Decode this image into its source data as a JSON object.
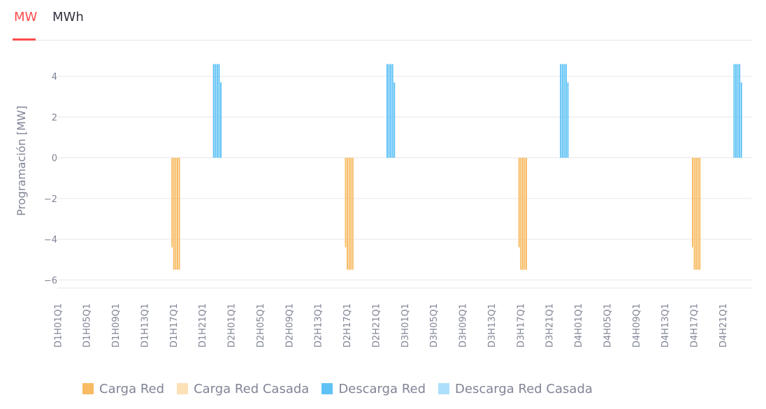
{
  "tabs": [
    {
      "label": "MW",
      "active": true
    },
    {
      "label": "MWh",
      "active": false
    }
  ],
  "colors": {
    "accent": "#ff4b4b",
    "carga_red": "#f8bb63",
    "carga_red_casada": "#fde0b6",
    "descarga_red": "#5ec2f5",
    "descarga_red_casada": "#ace0fa"
  },
  "chart_data": {
    "type": "bar",
    "ylabel": "Programación [MW]",
    "ylim": [
      -6.4,
      5.0
    ],
    "yticks": [
      4,
      2,
      0,
      -2,
      -4,
      -6
    ],
    "ytick_labels": [
      "4",
      "2",
      "0",
      "−2",
      "−4",
      "−6"
    ],
    "grid": true,
    "legend_position": "bottom-left",
    "x_tick_labels": [
      "D1H01Q1",
      "D1H05Q1",
      "D1H09Q1",
      "D1H13Q1",
      "D1H17Q1",
      "D1H21Q1",
      "D2H01Q1",
      "D2H05Q1",
      "D2H09Q1",
      "D2H13Q1",
      "D2H17Q1",
      "D2H21Q1",
      "D3H01Q1",
      "D3H05Q1",
      "D3H09Q1",
      "D3H13Q1",
      "D3H17Q1",
      "D3H21Q1",
      "D4H01Q1",
      "D4H05Q1",
      "D4H09Q1",
      "D4H13Q1",
      "D4H17Q1",
      "D4H21Q1"
    ],
    "series": [
      {
        "name": "Carga Red",
        "color": "#f8bb63",
        "points": [
          {
            "x": "D1H16Q4",
            "y": -4.4
          },
          {
            "x": "D1H17Q1",
            "y": -5.5
          },
          {
            "x": "D1H17Q2",
            "y": -5.5
          },
          {
            "x": "D1H17Q3",
            "y": -5.5
          },
          {
            "x": "D1H17Q4",
            "y": -5.5
          },
          {
            "x": "D2H16Q4",
            "y": -4.4
          },
          {
            "x": "D2H17Q1",
            "y": -5.5
          },
          {
            "x": "D2H17Q2",
            "y": -5.5
          },
          {
            "x": "D2H17Q3",
            "y": -5.5
          },
          {
            "x": "D2H17Q4",
            "y": -5.5
          },
          {
            "x": "D3H16Q4",
            "y": -4.4
          },
          {
            "x": "D3H17Q1",
            "y": -5.5
          },
          {
            "x": "D3H17Q2",
            "y": -5.5
          },
          {
            "x": "D3H17Q3",
            "y": -5.5
          },
          {
            "x": "D3H17Q4",
            "y": -5.5
          },
          {
            "x": "D4H16Q4",
            "y": -4.4
          },
          {
            "x": "D4H17Q1",
            "y": -5.5
          },
          {
            "x": "D4H17Q2",
            "y": -5.5
          },
          {
            "x": "D4H17Q3",
            "y": -5.5
          },
          {
            "x": "D4H17Q4",
            "y": -5.5
          }
        ]
      },
      {
        "name": "Carga Red Casada",
        "color": "#fde0b6",
        "points": []
      },
      {
        "name": "Descarga Red",
        "color": "#5ec2f5",
        "points": [
          {
            "x": "D1H22Q3",
            "y": 4.6
          },
          {
            "x": "D1H22Q4",
            "y": 4.6
          },
          {
            "x": "D1H23Q1",
            "y": 4.6
          },
          {
            "x": "D1H23Q2",
            "y": 4.6
          },
          {
            "x": "D1H23Q3",
            "y": 3.7
          },
          {
            "x": "D2H22Q3",
            "y": 4.6
          },
          {
            "x": "D2H22Q4",
            "y": 4.6
          },
          {
            "x": "D2H23Q1",
            "y": 4.6
          },
          {
            "x": "D2H23Q2",
            "y": 4.6
          },
          {
            "x": "D2H23Q3",
            "y": 3.7
          },
          {
            "x": "D3H22Q3",
            "y": 4.6
          },
          {
            "x": "D3H22Q4",
            "y": 4.6
          },
          {
            "x": "D3H23Q1",
            "y": 4.6
          },
          {
            "x": "D3H23Q2",
            "y": 4.6
          },
          {
            "x": "D3H23Q3",
            "y": 3.7
          },
          {
            "x": "D4H22Q3",
            "y": 4.6
          },
          {
            "x": "D4H22Q4",
            "y": 4.6
          },
          {
            "x": "D4H23Q1",
            "y": 4.6
          },
          {
            "x": "D4H23Q2",
            "y": 4.6
          },
          {
            "x": "D4H23Q3",
            "y": 3.7
          }
        ]
      },
      {
        "name": "Descarga Red Casada",
        "color": "#ace0fa",
        "points": []
      }
    ]
  }
}
